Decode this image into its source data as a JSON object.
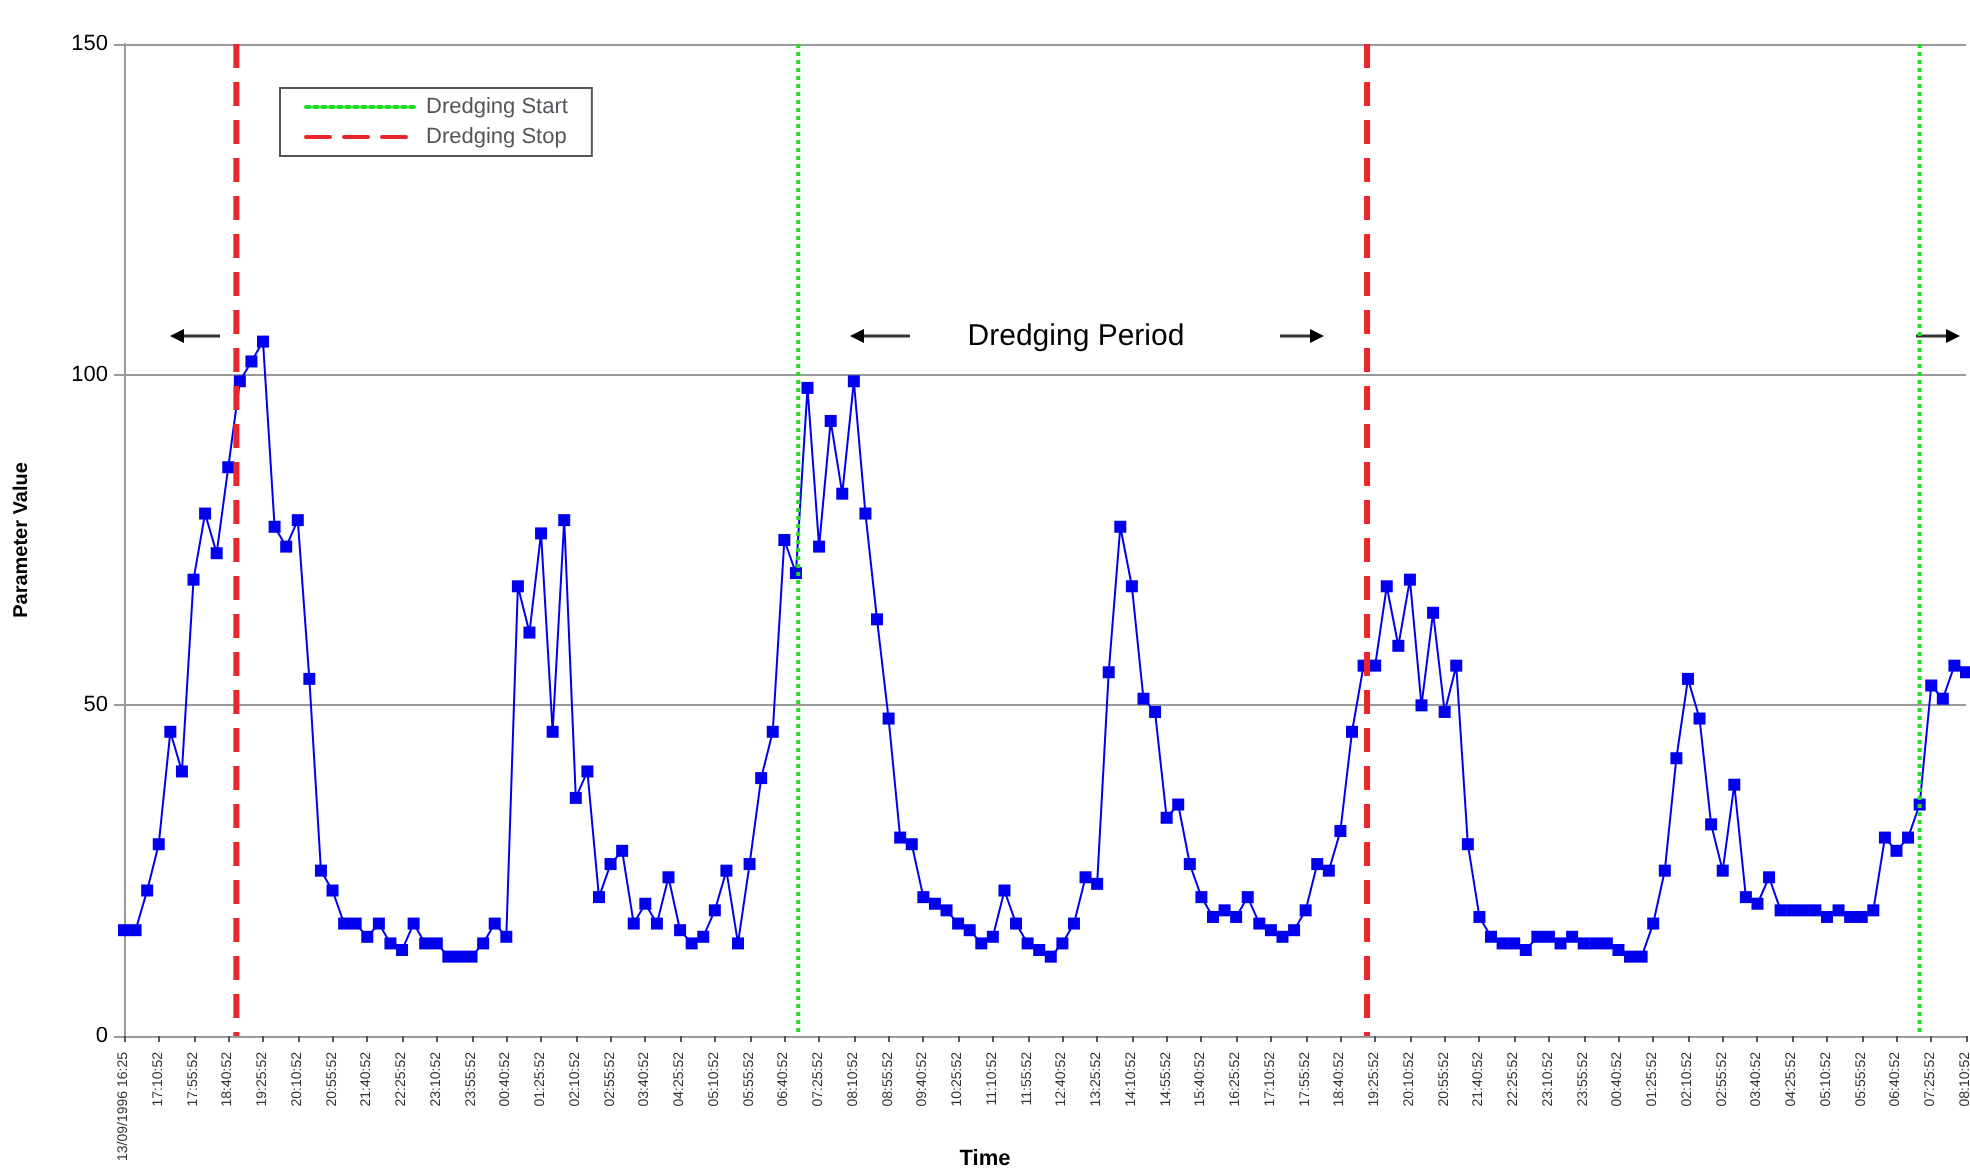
{
  "chart_data": {
    "type": "line",
    "xlabel": "Time",
    "ylabel": "Parameter Value",
    "categories": [
      "13/09/1996 16:25",
      null,
      null,
      "17:10:52",
      null,
      null,
      "17:55:52",
      null,
      null,
      "18:40:52",
      null,
      null,
      "19:25:52",
      null,
      null,
      "20:10:52",
      null,
      null,
      "20:55:52",
      null,
      null,
      "21:40:52",
      null,
      null,
      "22:25:52",
      null,
      null,
      "23:10:52",
      null,
      null,
      "23:55:52",
      null,
      null,
      "00:40:52",
      null,
      null,
      "01:25:52",
      null,
      null,
      "02:10:52",
      null,
      null,
      "02:55:52",
      null,
      null,
      "03:40:52",
      null,
      null,
      "04:25:52",
      null,
      null,
      "05:10:52",
      null,
      null,
      "05:55:52",
      null,
      null,
      "06:40:52",
      null,
      null,
      "07:25:52",
      null,
      null,
      "08:10:52",
      null,
      null,
      "08:55:52",
      null,
      null,
      "09:40:52",
      null,
      null,
      "10:25:52",
      null,
      null,
      "11:10:52",
      null,
      null,
      "11:55:52",
      null,
      null,
      "12:40:52",
      null,
      null,
      "13:25:52",
      null,
      null,
      "14:10:52",
      null,
      null,
      "14:55:52",
      null,
      null,
      "15:40:52",
      null,
      null,
      "16:25:52",
      null,
      null,
      "17:10:52",
      null,
      null,
      "17:55:52",
      null,
      null,
      "18:40:52",
      null,
      null,
      "19:25:52",
      null,
      null,
      "20:10:52",
      null,
      null,
      "20:55:52",
      null,
      null,
      "21:40:52",
      null,
      null,
      "22:25:52",
      null,
      null,
      "23:10:52",
      null,
      null,
      "23:55:52",
      null,
      null,
      "00:40:52",
      null,
      null,
      "01:25:52",
      null,
      null,
      "02:10:52",
      null,
      null,
      "02:55:52",
      null,
      null,
      "03:40:52",
      null,
      null,
      "04:25:52",
      null,
      null,
      "05:10:52",
      null,
      null,
      "05:55:52",
      null,
      null,
      "06:40:52",
      null,
      null,
      "07:25:52",
      null,
      null,
      "08:10:52"
    ],
    "series": [
      {
        "color": "#0000ee",
        "values": [
          16,
          16,
          22,
          29,
          46,
          40,
          69,
          79,
          73,
          86,
          99,
          102,
          105,
          77,
          74,
          78,
          54,
          25,
          22,
          17,
          17,
          15,
          17,
          14,
          13,
          17,
          14,
          14,
          12,
          12,
          12,
          14,
          17,
          15,
          68,
          61,
          76,
          46,
          78,
          36,
          40,
          21,
          26,
          28,
          17,
          20,
          17,
          24,
          16,
          14,
          15,
          19,
          25,
          14,
          26,
          39,
          46,
          75,
          70,
          98,
          74,
          93,
          82,
          99,
          79,
          63,
          48,
          30,
          29,
          21,
          20,
          19,
          17,
          16,
          14,
          15,
          22,
          17,
          14,
          13,
          12,
          14,
          17,
          24,
          23,
          55,
          77,
          68,
          51,
          49,
          33,
          35,
          26,
          21,
          18,
          19,
          18,
          21,
          17,
          16,
          15,
          16,
          19,
          26,
          25,
          31,
          46,
          56,
          56,
          68,
          59,
          69,
          50,
          64,
          49,
          56,
          29,
          18,
          15,
          14,
          14,
          13,
          15,
          15,
          14,
          15,
          14,
          14,
          14,
          13,
          12,
          12,
          17,
          25,
          42,
          54,
          48,
          32,
          25,
          38,
          21,
          20,
          24,
          19,
          19,
          19,
          19,
          18,
          19,
          18,
          18,
          19,
          30,
          28,
          30,
          35,
          53,
          51,
          56,
          55
        ]
      },
      {
        "name": "Dredging Start",
        "color": "#22dd22",
        "line_style": "dotted",
        "values": [
          null,
          null,
          null,
          null,
          null,
          null,
          null,
          null,
          null,
          null,
          null,
          null,
          null,
          null,
          null,
          null,
          null,
          null,
          null,
          null,
          null,
          null,
          null,
          null,
          null,
          null,
          null,
          null,
          null,
          null,
          null,
          null,
          null,
          null,
          null,
          null,
          null,
          null,
          null,
          null,
          null,
          null,
          null,
          null,
          null,
          null,
          null,
          null,
          null,
          null,
          null,
          null,
          null,
          null,
          null,
          null,
          null,
          null,
          null,
          null,
          null,
          null,
          null,
          null,
          null,
          null,
          null,
          null,
          null,
          null,
          null,
          null,
          null,
          null,
          null,
          null,
          null,
          null,
          null,
          null,
          null,
          null,
          null,
          null,
          null,
          null,
          null,
          null,
          null,
          null,
          null,
          null,
          null,
          null,
          null,
          null,
          null,
          null,
          null,
          null,
          null,
          null,
          null,
          null,
          null,
          null,
          null,
          null,
          null,
          null,
          null,
          null,
          null,
          null,
          null,
          null,
          null,
          null,
          null,
          null,
          null,
          null,
          null,
          null,
          null,
          null,
          null,
          null,
          null,
          null,
          null,
          null,
          null,
          null,
          null,
          null,
          null,
          null,
          null,
          null,
          null,
          null,
          null,
          null,
          null,
          null,
          null,
          null,
          null,
          null,
          null,
          null,
          null,
          null,
          null,
          null,
          null,
          null,
          null,
          null
        ]
      },
      {
        "name": "Dredging Stop",
        "color": "#e8262b",
        "line_style": "dashed",
        "values": [
          null,
          null,
          null,
          null,
          null,
          null,
          null,
          null,
          null,
          null,
          null,
          null,
          null,
          null,
          null,
          null,
          null,
          null,
          null,
          null,
          null,
          null,
          null,
          null,
          null,
          null,
          null,
          null,
          null,
          null,
          null,
          null,
          null,
          null,
          null,
          null,
          null,
          null,
          null,
          null,
          null,
          null,
          null,
          null,
          null,
          null,
          null,
          null,
          null,
          null,
          null,
          null,
          null,
          null,
          null,
          null,
          null,
          null,
          null,
          null,
          null,
          null,
          null,
          null,
          null,
          null,
          null,
          null,
          null,
          null,
          null,
          null,
          null,
          null,
          null,
          null,
          null,
          null,
          null,
          null,
          null,
          null,
          null,
          null,
          null,
          null,
          null,
          null,
          null,
          null,
          null,
          null,
          null,
          null,
          null,
          null,
          null,
          null,
          null,
          null,
          null,
          null,
          null,
          null,
          null,
          null,
          null,
          null,
          null,
          null,
          null,
          null,
          null,
          null,
          null,
          null,
          null,
          null,
          null,
          null,
          null,
          null,
          null,
          null,
          null,
          null,
          null,
          null,
          null,
          null,
          null,
          null,
          null,
          null,
          null,
          null,
          null,
          null,
          null,
          null,
          null,
          null,
          null,
          null,
          null,
          null,
          null,
          null,
          null,
          null,
          null,
          null,
          null,
          null,
          null,
          null,
          null,
          null,
          null,
          null
        ]
      }
    ],
    "ylim": [
      0,
      150
    ],
    "yticks": [
      0,
      50,
      100,
      150
    ],
    "annotations": [
      "Dredging Period"
    ],
    "grid": "y",
    "legend": "top left",
    "marker": "square",
    "line_style": "solid"
  }
}
